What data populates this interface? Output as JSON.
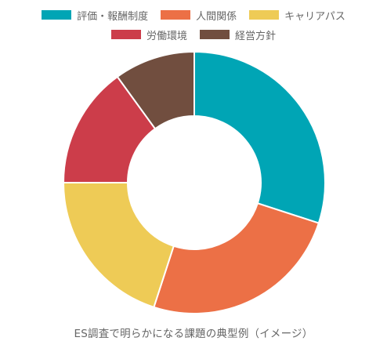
{
  "chart_data": {
    "type": "pie",
    "variant": "doughnut",
    "title": "ES調査で明らかになる課題の典型例（イメージ）",
    "categories": [
      "評価・報酬制度",
      "人間関係",
      "キャリアパス",
      "労働環境",
      "経営方針"
    ],
    "values": [
      30,
      25,
      20,
      15,
      10
    ],
    "colors": [
      "#00a5b5",
      "#ec7046",
      "#eecb56",
      "#cc3d4a",
      "#714e3f"
    ],
    "legend": "top"
  }
}
